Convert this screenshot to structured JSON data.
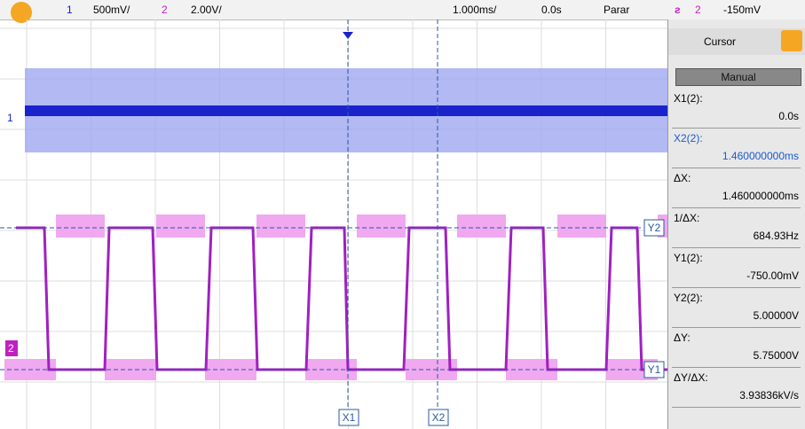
{
  "top_bar": {
    "ch1_number": "1",
    "ch1_scale": "500mV/",
    "ch2_number": "2",
    "ch2_scale": "2.00V/",
    "timebase": "1.000ms/",
    "delay": "0.0s",
    "run_state": "Parar",
    "trigger_source": "2",
    "trigger_level": "-150mV"
  },
  "markers": {
    "ch1": "1",
    "ch2": "2",
    "x1": "X1",
    "x2": "X2",
    "y1": "Y1",
    "y2": "Y2"
  },
  "cursor_panel": {
    "title": "Cursor",
    "mode": "Manual",
    "rows": [
      {
        "label": "X1(2):",
        "value": "0.0s"
      },
      {
        "label": "X2(2):",
        "value": "1.460000000ms"
      },
      {
        "label": "ΔX:",
        "value": "1.460000000ms"
      },
      {
        "label": "1/ΔX:",
        "value": "684.93Hz"
      },
      {
        "label": "Y1(2):",
        "value": "-750.00mV"
      },
      {
        "label": "Y2(2):",
        "value": "5.00000V"
      },
      {
        "label": "ΔY:",
        "value": "5.75000V"
      },
      {
        "label": "ΔY/ΔX:",
        "value": "3.93836kV/s"
      }
    ]
  }
}
